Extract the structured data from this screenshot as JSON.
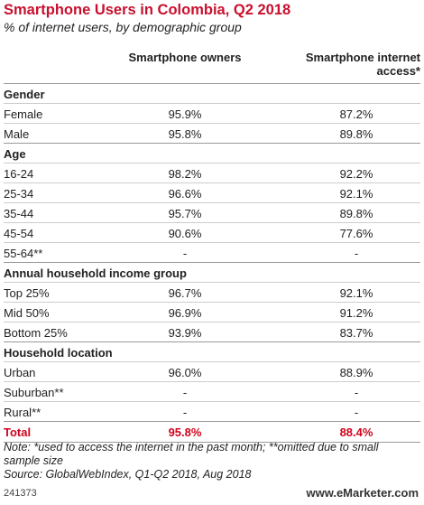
{
  "header": {
    "title": "Smartphone Users in Colombia, Q2 2018",
    "subtitle": "% of internet users, by demographic group"
  },
  "table": {
    "columns": [
      "Smartphone owners",
      "Smartphone internet access*"
    ],
    "sections": [
      {
        "label": "Gender",
        "rows": [
          [
            "Female",
            "95.9%",
            "87.2%"
          ],
          [
            "Male",
            "95.8%",
            "89.8%"
          ]
        ]
      },
      {
        "label": "Age",
        "rows": [
          [
            "16-24",
            "98.2%",
            "92.2%"
          ],
          [
            "25-34",
            "96.6%",
            "92.1%"
          ],
          [
            "35-44",
            "95.7%",
            "89.8%"
          ],
          [
            "45-54",
            "90.6%",
            "77.6%"
          ],
          [
            "55-64**",
            "-",
            "-"
          ]
        ]
      },
      {
        "label": "Annual household income group",
        "rows": [
          [
            "Top 25%",
            "96.7%",
            "92.1%"
          ],
          [
            "Mid 50%",
            "96.9%",
            "91.2%"
          ],
          [
            "Bottom 25%",
            "93.9%",
            "83.7%"
          ]
        ]
      },
      {
        "label": "Household location",
        "rows": [
          [
            "Urban",
            "96.0%",
            "88.9%"
          ],
          [
            "Suburban**",
            "-",
            "-"
          ],
          [
            "Rural**",
            "-",
            "-"
          ]
        ]
      }
    ],
    "total": [
      "Total",
      "95.8%",
      "88.4%"
    ]
  },
  "footer": {
    "note": "Note: *used to access the internet in the past month; **omitted due to small sample size",
    "source": "Source: GlobalWebIndex, Q1-Q2 2018, Aug 2018",
    "id": "241373",
    "brand": "www.eMarketer.com"
  }
}
